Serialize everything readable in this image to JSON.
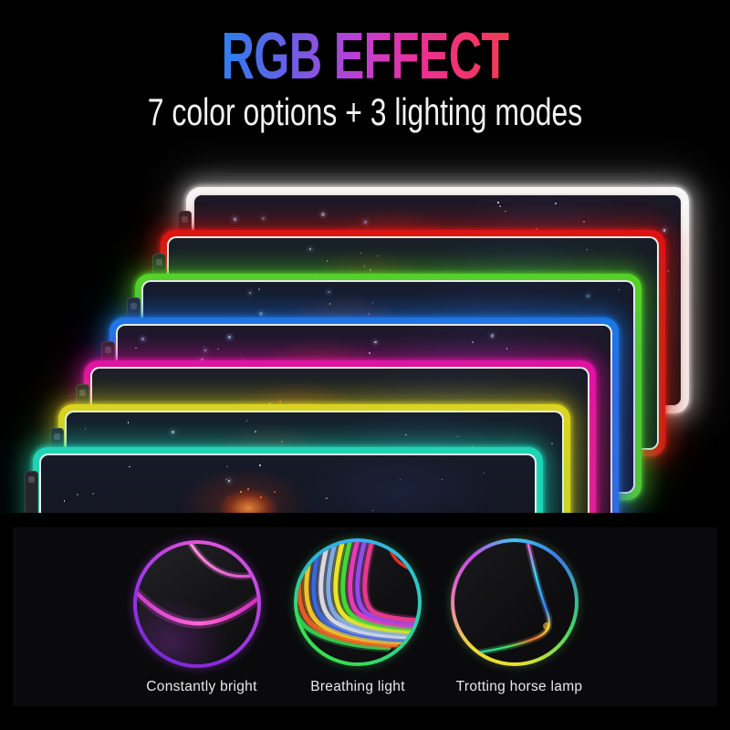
{
  "header": {
    "title": "RGB EFFECT",
    "subtitle": "7 color options + 3 lighting modes",
    "title_gradient": [
      "#2f7ff0",
      "#5668e6",
      "#8a52de",
      "#c43ed0",
      "#e8309c",
      "#ef3472",
      "#f23b52"
    ]
  },
  "product": {
    "pad_colors": [
      {
        "name": "white",
        "hex": "#f8f8f8"
      },
      {
        "name": "red",
        "hex": "#e01212"
      },
      {
        "name": "green",
        "hex": "#55d426"
      },
      {
        "name": "blue",
        "hex": "#1c78e8"
      },
      {
        "name": "magenta",
        "hex": "#e012a2"
      },
      {
        "name": "yellow",
        "hex": "#ddd41e"
      },
      {
        "name": "cyan",
        "hex": "#1ed4b4"
      }
    ]
  },
  "modes": [
    {
      "label": "Constantly bright"
    },
    {
      "label": "Breathing light"
    },
    {
      "label": "Trotting horse lamp"
    }
  ]
}
